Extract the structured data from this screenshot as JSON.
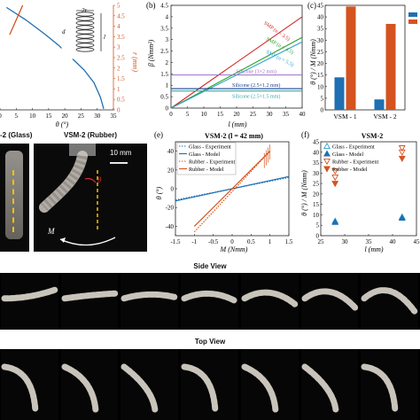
{
  "panels": {
    "a": {
      "xlabel": "θ (°)",
      "ylabel": "r (mm)",
      "x_ticks": [
        "0",
        "5",
        "10",
        "15",
        "20",
        "25",
        "30",
        "35"
      ],
      "y_ticks": [
        "0",
        "0.5",
        "1",
        "1.5",
        "2",
        "2.5",
        "3",
        "3.5",
        "4",
        "4.5",
        "5"
      ],
      "inset_labels": [
        "2r",
        "d",
        "l"
      ]
    },
    "b": {
      "letter": "(b)",
      "ylabel": "β (Nmm²)",
      "xlabel": "l (mm)",
      "x_ticks": [
        "0",
        "5",
        "10",
        "15",
        "20",
        "25",
        "30",
        "35",
        "40"
      ],
      "y_ticks": [
        "0",
        "0.5",
        "1",
        "1.5",
        "2",
        "2.5",
        "3",
        "3.5",
        "4",
        "4.5"
      ]
    },
    "c": {
      "letter": "(c)",
      "ylabel": "θ (°) / M (Nmm)",
      "y_ticks": [
        "0",
        "5",
        "10",
        "15",
        "20",
        "25",
        "30",
        "35",
        "40",
        "45"
      ],
      "categories": [
        "VSM - 1",
        "VSM - 2"
      ]
    },
    "photos": {
      "left_label": "-2 (Glass)",
      "right_label": "VSM-2 (Rubber)",
      "scale": "10 mm",
      "theta": "θ",
      "moment": "M"
    },
    "e": {
      "letter": "(e)",
      "title": "VSM-2 (l = 42 mm)",
      "xlabel": "M (Nmm)",
      "ylabel": "θ (°)",
      "x_ticks": [
        "-1.5",
        "-1",
        "-0.5",
        "0",
        "0.5",
        "1",
        "1.5"
      ],
      "y_ticks": [
        "-40",
        "-20",
        "0",
        "20",
        "40"
      ],
      "legend": [
        "Glass - Experiment",
        "Glass - Model",
        "Rubber - Experiment",
        "Rubber - Model"
      ]
    },
    "f": {
      "letter": "(f)",
      "title": "VSM-2",
      "xlabel": "l (mm)",
      "ylabel": "θ (°) / M (Nmm)",
      "x_ticks": [
        "25",
        "30",
        "35",
        "40",
        "45"
      ],
      "y_ticks": [
        "0",
        "5",
        "10",
        "15",
        "20",
        "25",
        "30",
        "35",
        "40",
        "45"
      ],
      "legend": [
        "Glass - Experiment",
        "Glass - Model",
        "Rubber - Experiment",
        "Rubber - Model"
      ]
    },
    "side_view": {
      "title": "Side View"
    },
    "top_view": {
      "title": "Top View"
    }
  },
  "colors": {
    "blue": "#1f6fb2",
    "orange": "#d4531f",
    "red": "#d62728",
    "green": "#2ca02c",
    "lightblue": "#2aa0c8",
    "purple": "#9a6fc2",
    "navy": "#1f3f8f",
    "teal": "#3fa5a5"
  },
  "chart_data": [
    {
      "type": "line",
      "panel": "a",
      "xlabel": "θ (°)",
      "ylabel": "r (mm)",
      "ylim": [
        0,
        5
      ],
      "xlim": [
        0,
        35
      ],
      "series": [
        {
          "color": "#1f6fb2",
          "x": [
            2,
            8,
            14,
            18,
            22,
            26,
            29,
            31,
            32
          ],
          "y": [
            4.9,
            4.3,
            3.6,
            3.1,
            2.5,
            1.9,
            1.3,
            0.6,
            0.05
          ]
        },
        {
          "color": "#d4531f",
          "x": [
            3,
            5,
            7
          ],
          "y": [
            3.6,
            4.3,
            5.0
          ]
        }
      ]
    },
    {
      "type": "line",
      "panel": "b",
      "xlabel": "l (mm)",
      "ylabel": "β (Nmm²)",
      "xlim": [
        0,
        40
      ],
      "ylim": [
        0,
        4.5
      ],
      "series": [
        {
          "name": "SMP (n = 3.5)",
          "color": "#d62728",
          "x": [
            0,
            40
          ],
          "y": [
            0,
            4.0
          ]
        },
        {
          "name": "SMP (n = 4.5)",
          "color": "#2ca02c",
          "x": [
            0,
            40
          ],
          "y": [
            0,
            3.1
          ]
        },
        {
          "name": "SMP (n = 5.5)",
          "color": "#2aa0c8",
          "x": [
            0,
            40
          ],
          "y": [
            0,
            2.9
          ]
        },
        {
          "name": "Silicone (3×2 mm)",
          "color": "#9a6fc2",
          "x": [
            0,
            40
          ],
          "y": [
            1.45,
            1.45
          ]
        },
        {
          "name": "Silicone (2.5×1.2 mm)",
          "color": "#1f3f8f",
          "x": [
            0,
            40
          ],
          "y": [
            0.85,
            0.85
          ]
        },
        {
          "name": "Silicone (2.5×1.5 mm)",
          "color": "#3fa5a5",
          "x": [
            0,
            40
          ],
          "y": [
            0.75,
            0.75
          ]
        }
      ]
    },
    {
      "type": "bar",
      "panel": "c",
      "categories": [
        "VSM - 1",
        "VSM - 2"
      ],
      "ylim": [
        0,
        45
      ],
      "series": [
        {
          "color": "#1f6fb2",
          "values": [
            14,
            4.5
          ]
        },
        {
          "color": "#d4531f",
          "values": [
            44.5,
            37
          ]
        }
      ]
    },
    {
      "type": "scatter",
      "panel": "e",
      "title": "VSM-2 (l = 42 mm)",
      "xlabel": "M (Nmm)",
      "ylabel": "θ (°)",
      "xlim": [
        -1.5,
        1.5
      ],
      "ylim": [
        -50,
        50
      ],
      "series": [
        {
          "name": "Glass - Experiment",
          "color": "#1f6fb2",
          "style": "dotted",
          "x": [
            -1.5,
            1.5
          ],
          "y": [
            -12,
            12
          ]
        },
        {
          "name": "Glass - Model",
          "color": "#1f6fb2",
          "style": "solid",
          "x": [
            -1.5,
            1.5
          ],
          "y": [
            -13,
            13
          ]
        },
        {
          "name": "Rubber - Experiment",
          "color": "#d4531f",
          "style": "dotted",
          "x": [
            -1.0,
            1.0
          ],
          "y": [
            -46,
            40
          ]
        },
        {
          "name": "Rubber - Model",
          "color": "#d4531f",
          "style": "solid",
          "x": [
            -1.0,
            1.0
          ],
          "y": [
            -40,
            40
          ]
        }
      ]
    },
    {
      "type": "scatter",
      "panel": "f",
      "title": "VSM-2",
      "xlabel": "l (mm)",
      "ylabel": "θ (°) / M (Nmm)",
      "xlim": [
        25,
        45
      ],
      "ylim": [
        0,
        45
      ],
      "series": [
        {
          "name": "Glass - Experiment",
          "color": "#2aa0c8",
          "marker": "triangle-up-open",
          "x": [
            28,
            42
          ],
          "y": [
            7,
            9
          ]
        },
        {
          "name": "Glass - Model",
          "color": "#1f6fb2",
          "marker": "triangle-up",
          "x": [
            28,
            42
          ],
          "y": [
            6.5,
            8.5
          ]
        },
        {
          "name": "Rubber - Experiment",
          "color": "#d4531f",
          "marker": "triangle-down-open",
          "x": [
            28,
            28,
            42,
            42
          ],
          "y": [
            28,
            31,
            40,
            42
          ]
        },
        {
          "name": "Rubber - Model",
          "color": "#d4531f",
          "marker": "triangle-down",
          "x": [
            28,
            42
          ],
          "y": [
            25,
            37
          ]
        }
      ]
    }
  ]
}
